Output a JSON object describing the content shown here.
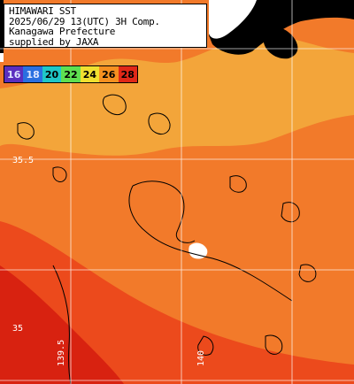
{
  "title_box": {
    "lines": [
      "HIMAWARI SST",
      "2025/06/29 13(UTC) 3H Comp.",
      "Kanagawa Prefecture",
      "supplied by JAXA"
    ]
  },
  "legend": {
    "items": [
      {
        "label": "16",
        "color": "#5a2fbf"
      },
      {
        "label": "18",
        "color": "#2a6fe0"
      },
      {
        "label": "20",
        "color": "#1fc7c7"
      },
      {
        "label": "22",
        "color": "#5fe050"
      },
      {
        "label": "24",
        "color": "#f0e030"
      },
      {
        "label": "26",
        "color": "#f59020"
      },
      {
        "label": "28",
        "color": "#e02818"
      }
    ]
  },
  "grid_labels": {
    "lat_35_5": "35.5",
    "lat_35": "35",
    "lon_139_5": "139.5",
    "lon_140": "140"
  },
  "map_colors": {
    "sea_main": "#f27a2a",
    "sea_warm": "#ec4a1c",
    "sea_hot": "#d82210",
    "land": "#000000",
    "cloud_mask": "#ffffff",
    "coast_shallow": "#f3a53a",
    "grid": "#ffffff"
  }
}
